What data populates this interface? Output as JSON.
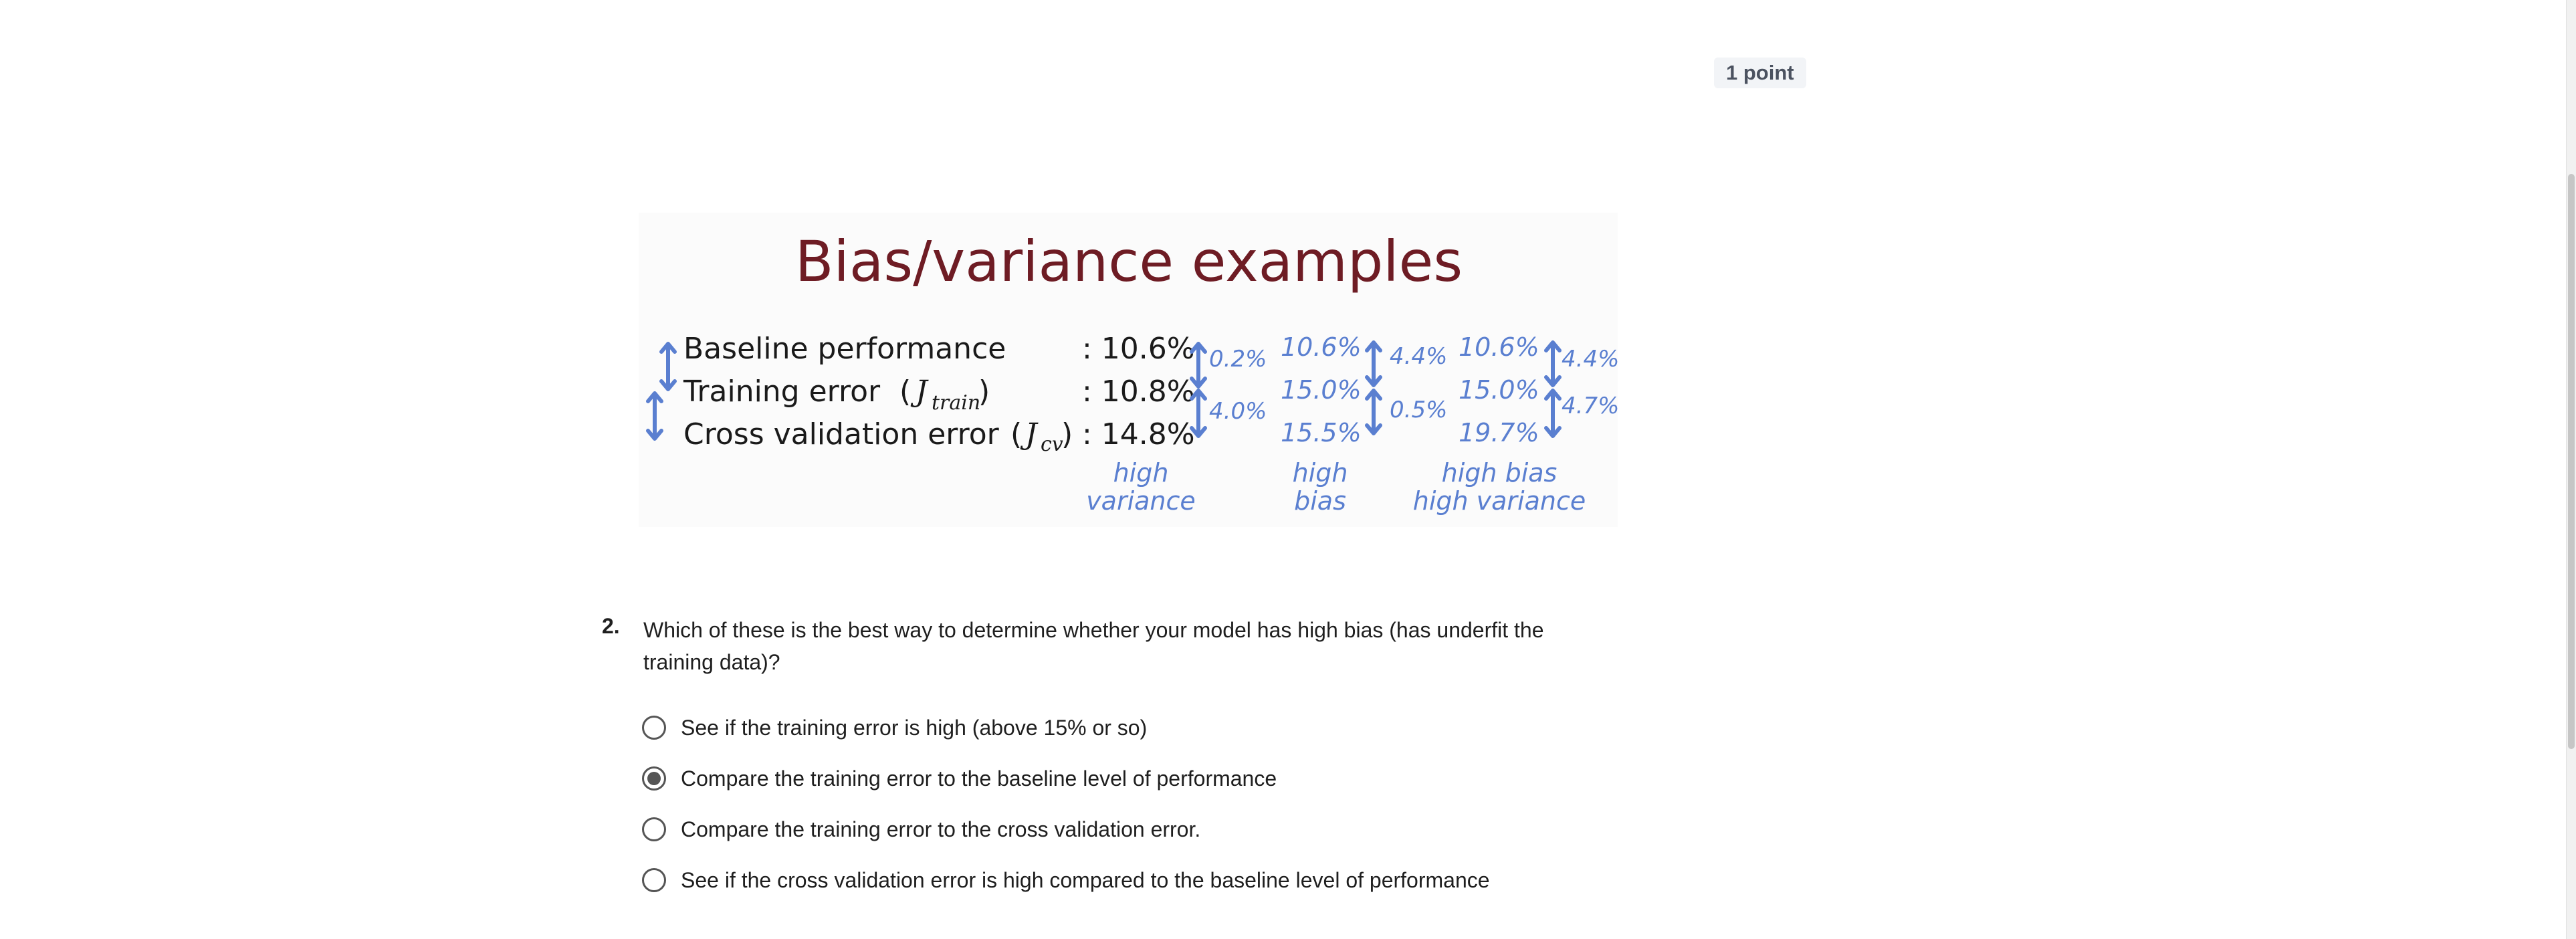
{
  "points_badge": "1 point",
  "figure": {
    "title": "Bias/variance examples",
    "rows": [
      {
        "label": "Baseline performance",
        "math": "",
        "math_sub": "",
        "value": ": 10.6%"
      },
      {
        "label": "Training error",
        "math": "J",
        "math_sub": "train",
        "value": ": 10.8%"
      },
      {
        "label": "Cross validation error",
        "math": "J",
        "math_sub": "cv",
        "value": ": 14.8%"
      }
    ],
    "col1_gaps": [
      "0.2%",
      "4.0%"
    ],
    "col2_values": [
      "10.6%",
      "15.0%",
      "15.5%"
    ],
    "col2_gaps": [
      "4.4%",
      "0.5%"
    ],
    "col3_values": [
      "10.6%",
      "15.0%",
      "19.7%"
    ],
    "col3_gaps": [
      "4.4%",
      "4.7%"
    ],
    "captions": [
      {
        "line1": "high",
        "line2": "variance"
      },
      {
        "line1": "high",
        "line2": "bias"
      },
      {
        "line1": "high bias",
        "line2": "high variance"
      }
    ],
    "colors": {
      "title": "#6e1c24",
      "annotation": "#5a7fd0"
    }
  },
  "question": {
    "number": "2.",
    "text": "Which of these is the best way to determine whether your model has high bias (has underfit the training data)?",
    "options": [
      {
        "label": "See if the training error is high (above 15% or so)",
        "selected": false
      },
      {
        "label": "Compare the training error to the baseline level of performance",
        "selected": true
      },
      {
        "label": "Compare the training error to the cross validation error.",
        "selected": false
      },
      {
        "label": "See if the cross validation error is high compared to the baseline level of performance",
        "selected": false
      }
    ]
  }
}
